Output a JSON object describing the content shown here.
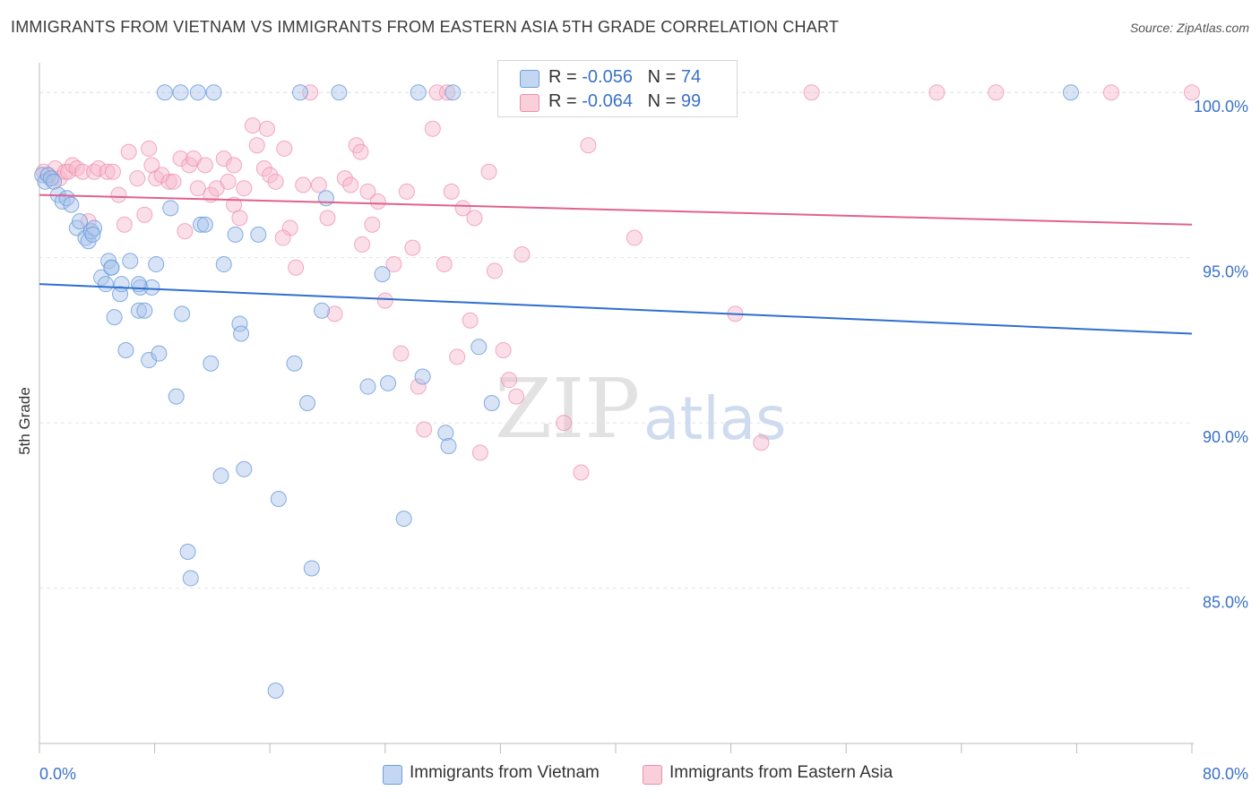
{
  "header": {
    "title": "IMMIGRANTS FROM VIETNAM VS IMMIGRANTS FROM EASTERN ASIA 5TH GRADE CORRELATION CHART",
    "source": "Source: ZipAtlas.com"
  },
  "watermark": {
    "zip": "ZIP",
    "atlas": "atlas"
  },
  "legend": {
    "rows": [
      {
        "r_label": "R = ",
        "r_value": "-0.056",
        "n_label": "N = ",
        "n_value": "74",
        "color": "#a9c4ec",
        "border": "#6f9fdc"
      },
      {
        "r_label": "R = ",
        "r_value": "-0.064",
        "n_label": "N = ",
        "n_value": "99",
        "color": "#f6b8cb",
        "border": "#ef8fae"
      }
    ]
  },
  "bottom_legend": {
    "vietnam": "Immigrants from Vietnam",
    "eastern_asia": "Immigrants from Eastern Asia"
  },
  "chart_data": {
    "type": "scatter",
    "ylabel": "5th Grade",
    "xlabel": "",
    "x_tick_labels": [
      "0.0%",
      "80.0%"
    ],
    "y_tick_labels": [
      "100.0%",
      "95.0%",
      "90.0%",
      "85.0%"
    ],
    "y_ticks": [
      100,
      95,
      90,
      85
    ],
    "xlim": [
      0,
      80
    ],
    "ylim": [
      80.3,
      100.9
    ],
    "grid": true,
    "colors": {
      "vietnam": "#6f9fdc",
      "vietnam_fill": "#a9c4ec",
      "vietnam_line": "#2f6fd0",
      "asia": "#ef8fae",
      "asia_fill": "#f6b8cb",
      "asia_line": "#e0628e"
    },
    "series": [
      {
        "name": "Immigrants from Vietnam",
        "trend": {
          "x0": 0,
          "y0": 94.2,
          "x1": 80,
          "y1": 92.7
        },
        "points": [
          [
            0.2,
            97.5
          ],
          [
            0.4,
            97.3
          ],
          [
            0.6,
            97.5
          ],
          [
            0.8,
            97.4
          ],
          [
            1.0,
            97.3
          ],
          [
            1.3,
            96.9
          ],
          [
            1.6,
            96.7
          ],
          [
            1.9,
            96.8
          ],
          [
            2.2,
            96.6
          ],
          [
            2.6,
            95.9
          ],
          [
            2.8,
            96.1
          ],
          [
            3.2,
            95.6
          ],
          [
            3.4,
            95.5
          ],
          [
            3.6,
            95.8
          ],
          [
            3.8,
            95.9
          ],
          [
            4.3,
            94.4
          ],
          [
            4.6,
            94.2
          ],
          [
            4.8,
            94.9
          ],
          [
            5.0,
            94.7
          ],
          [
            5.2,
            93.2
          ],
          [
            5.6,
            93.9
          ],
          [
            5.7,
            94.2
          ],
          [
            6.0,
            92.2
          ],
          [
            6.3,
            94.9
          ],
          [
            6.9,
            93.4
          ],
          [
            7.0,
            94.1
          ],
          [
            7.3,
            93.4
          ],
          [
            7.6,
            91.9
          ],
          [
            7.8,
            94.1
          ],
          [
            8.1,
            94.8
          ],
          [
            8.3,
            92.1
          ],
          [
            9.1,
            96.5
          ],
          [
            9.5,
            90.8
          ],
          [
            9.9,
            93.3
          ],
          [
            10.3,
            86.1
          ],
          [
            10.5,
            85.3
          ],
          [
            11.2,
            96.0
          ],
          [
            11.5,
            96.0
          ],
          [
            11.9,
            91.8
          ],
          [
            12.6,
            88.4
          ],
          [
            12.8,
            94.8
          ],
          [
            13.6,
            95.7
          ],
          [
            13.9,
            93.0
          ],
          [
            14.0,
            92.7
          ],
          [
            14.2,
            88.6
          ],
          [
            15.2,
            95.7
          ],
          [
            16.4,
            81.9
          ],
          [
            16.6,
            87.7
          ],
          [
            17.7,
            91.8
          ],
          [
            18.6,
            90.6
          ],
          [
            18.9,
            85.6
          ],
          [
            19.6,
            93.4
          ],
          [
            19.9,
            96.8
          ],
          [
            22.8,
            91.1
          ],
          [
            23.8,
            94.5
          ],
          [
            24.2,
            91.2
          ],
          [
            25.3,
            87.1
          ],
          [
            26.3,
            100.0
          ],
          [
            26.6,
            91.4
          ],
          [
            28.2,
            89.7
          ],
          [
            28.4,
            89.3
          ],
          [
            30.5,
            92.3
          ],
          [
            31.4,
            90.6
          ],
          [
            9.8,
            100.0
          ],
          [
            11.0,
            100.0
          ],
          [
            12.1,
            100.0
          ],
          [
            18.1,
            100.0
          ],
          [
            20.8,
            100.0
          ],
          [
            28.7,
            100.0
          ],
          [
            71.6,
            100.0
          ],
          [
            8.7,
            100.0
          ],
          [
            3.7,
            95.7
          ],
          [
            5.0,
            94.7
          ],
          [
            6.9,
            94.2
          ]
        ]
      },
      {
        "name": "Immigrants from Eastern Asia",
        "trend": {
          "x0": 0,
          "y0": 96.9,
          "x1": 80,
          "y1": 96.0
        },
        "points": [
          [
            0.3,
            97.6
          ],
          [
            0.6,
            97.5
          ],
          [
            0.9,
            97.4
          ],
          [
            1.1,
            97.7
          ],
          [
            1.4,
            97.4
          ],
          [
            1.8,
            97.6
          ],
          [
            2.0,
            97.6
          ],
          [
            2.3,
            97.8
          ],
          [
            2.6,
            97.7
          ],
          [
            3.0,
            97.6
          ],
          [
            3.4,
            96.1
          ],
          [
            3.8,
            97.6
          ],
          [
            4.1,
            97.7
          ],
          [
            4.7,
            97.6
          ],
          [
            5.1,
            97.6
          ],
          [
            5.5,
            96.9
          ],
          [
            5.9,
            96.0
          ],
          [
            6.2,
            98.2
          ],
          [
            6.8,
            97.4
          ],
          [
            7.3,
            96.3
          ],
          [
            7.6,
            98.3
          ],
          [
            7.8,
            97.8
          ],
          [
            8.1,
            97.4
          ],
          [
            8.5,
            97.5
          ],
          [
            9.0,
            97.3
          ],
          [
            9.3,
            97.3
          ],
          [
            9.8,
            98.0
          ],
          [
            10.1,
            95.8
          ],
          [
            10.4,
            97.8
          ],
          [
            10.7,
            98.0
          ],
          [
            11.0,
            97.1
          ],
          [
            11.5,
            97.8
          ],
          [
            11.9,
            96.9
          ],
          [
            12.3,
            97.1
          ],
          [
            12.8,
            98.0
          ],
          [
            13.1,
            97.3
          ],
          [
            13.5,
            96.6
          ],
          [
            13.9,
            96.2
          ],
          [
            14.2,
            97.1
          ],
          [
            14.8,
            99.0
          ],
          [
            15.1,
            98.4
          ],
          [
            15.6,
            97.7
          ],
          [
            16.0,
            97.5
          ],
          [
            16.4,
            97.3
          ],
          [
            17.0,
            98.3
          ],
          [
            17.4,
            95.9
          ],
          [
            17.8,
            94.7
          ],
          [
            18.3,
            97.2
          ],
          [
            18.8,
            100.0
          ],
          [
            19.4,
            97.2
          ],
          [
            20.0,
            96.2
          ],
          [
            20.5,
            93.3
          ],
          [
            21.2,
            97.4
          ],
          [
            21.6,
            97.2
          ],
          [
            22.0,
            98.4
          ],
          [
            22.3,
            98.2
          ],
          [
            22.8,
            97.0
          ],
          [
            23.1,
            96.0
          ],
          [
            23.5,
            96.7
          ],
          [
            24.0,
            93.7
          ],
          [
            24.6,
            94.8
          ],
          [
            25.1,
            92.1
          ],
          [
            25.5,
            97.0
          ],
          [
            25.9,
            95.3
          ],
          [
            26.3,
            91.1
          ],
          [
            26.7,
            89.8
          ],
          [
            27.3,
            98.9
          ],
          [
            27.6,
            100.0
          ],
          [
            28.1,
            94.8
          ],
          [
            28.6,
            97.0
          ],
          [
            29.0,
            92.0
          ],
          [
            29.4,
            96.5
          ],
          [
            29.9,
            93.1
          ],
          [
            30.2,
            96.2
          ],
          [
            30.6,
            89.1
          ],
          [
            31.2,
            97.6
          ],
          [
            31.6,
            94.6
          ],
          [
            32.2,
            92.2
          ],
          [
            32.6,
            91.3
          ],
          [
            33.1,
            90.8
          ],
          [
            33.5,
            95.1
          ],
          [
            36.4,
            90.0
          ],
          [
            37.6,
            88.5
          ],
          [
            38.1,
            98.4
          ],
          [
            41.3,
            95.6
          ],
          [
            48.3,
            93.3
          ],
          [
            50.1,
            89.4
          ],
          [
            53.6,
            100.0
          ],
          [
            62.3,
            100.0
          ],
          [
            66.4,
            100.0
          ],
          [
            74.4,
            100.0
          ],
          [
            80.0,
            100.0
          ],
          [
            38.0,
            100.0
          ],
          [
            40.9,
            100.0
          ],
          [
            15.8,
            98.9
          ],
          [
            22.4,
            95.4
          ],
          [
            13.5,
            97.8
          ],
          [
            16.9,
            95.6
          ],
          [
            28.3,
            100.0
          ]
        ]
      }
    ]
  }
}
